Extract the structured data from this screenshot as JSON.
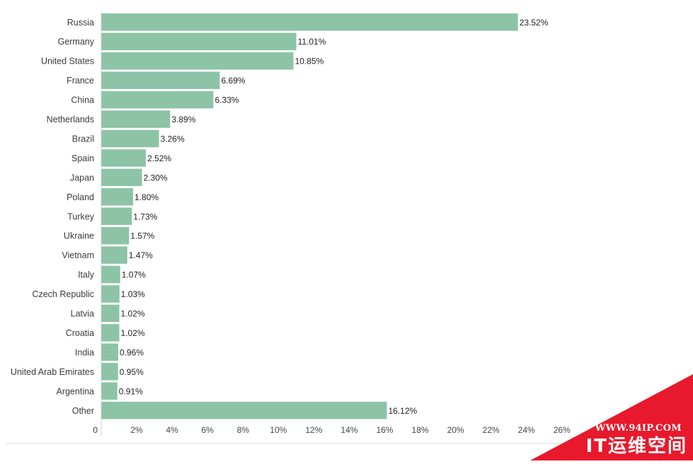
{
  "chart_data": {
    "type": "bar",
    "orientation": "horizontal",
    "categories": [
      "Russia",
      "Germany",
      "United States",
      "France",
      "China",
      "Netherlands",
      "Brazil",
      "Spain",
      "Japan",
      "Poland",
      "Turkey",
      "Ukraine",
      "Vietnam",
      "Italy",
      "Czech Republic",
      "Latvia",
      "Croatia",
      "India",
      "United Arab Emirates",
      "Argentina",
      "Other"
    ],
    "values": [
      23.52,
      11.01,
      10.85,
      6.69,
      6.33,
      3.89,
      3.26,
      2.52,
      2.3,
      1.8,
      1.73,
      1.57,
      1.47,
      1.07,
      1.03,
      1.02,
      1.02,
      0.96,
      0.95,
      0.91,
      16.12
    ],
    "value_labels": [
      "23.52%",
      "11.01%",
      "10.85%",
      "6.69%",
      "6.33%",
      "3.89%",
      "3.26%",
      "2.52%",
      "2.30%",
      "1.80%",
      "1.73%",
      "1.57%",
      "1.47%",
      "1.07%",
      "1.03%",
      "1.02%",
      "1.02%",
      "0.96%",
      "0.95%",
      "0.91%",
      "16.12%"
    ],
    "xlim": [
      0,
      26
    ],
    "x_ticks": [
      "0",
      "2%",
      "4%",
      "6%",
      "8%",
      "10%",
      "12%",
      "14%",
      "16%",
      "18%",
      "20%",
      "22%",
      "24%",
      "26%"
    ],
    "x_tick_values": [
      0,
      2,
      4,
      6,
      8,
      10,
      12,
      14,
      16,
      18,
      20,
      22,
      24,
      26
    ],
    "title": "",
    "xlabel": "",
    "ylabel": "",
    "grid": false,
    "legend": "none",
    "bar_color": "#8dc3a7"
  },
  "watermark": {
    "url": "WWW.94IP.COM",
    "name": "IT运维空间",
    "color": "#e8192c"
  }
}
